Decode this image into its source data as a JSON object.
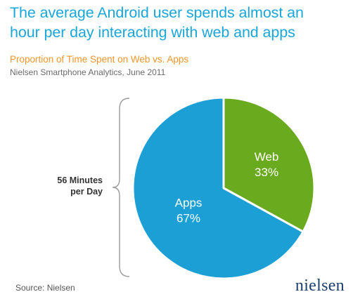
{
  "headline": {
    "line1": "The average Android user spends almost an",
    "line2": "hour per day interacting with web and apps"
  },
  "subtitle": "Proportion of Time Spent on Web vs. Apps",
  "source_line": "Nielsen Smartphone Analytics, June 2011",
  "side_label": {
    "line1": "56 Minutes",
    "line2": "per Day"
  },
  "footer": {
    "source": "Source: Nielsen",
    "logo": "nielsen"
  },
  "chart_data": {
    "type": "pie",
    "title": "Proportion of Time Spent on Web vs. Apps",
    "slices": [
      {
        "label": "Web",
        "value": 33,
        "display": "33%",
        "color": "#6aaa1e"
      },
      {
        "label": "Apps",
        "value": 67,
        "display": "67%",
        "color": "#1c9fd4"
      }
    ]
  },
  "colors": {
    "headline": "#1aa6d8",
    "subtitle": "#f0962c",
    "brace": "#9a9a9a"
  }
}
